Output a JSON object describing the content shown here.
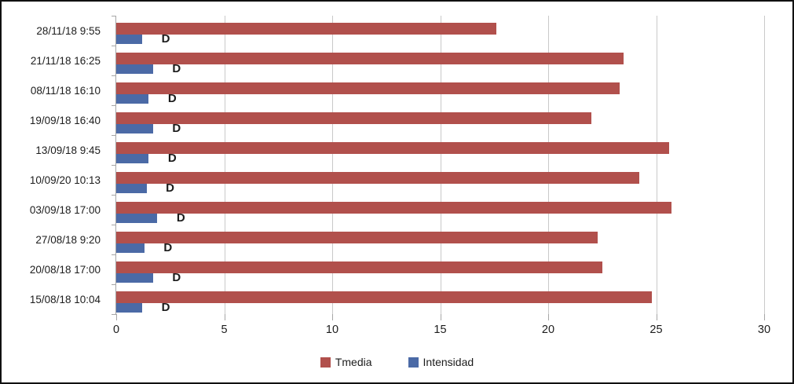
{
  "chart_data": {
    "type": "bar",
    "orientation": "horizontal",
    "title": "",
    "xlabel": "",
    "ylabel": "",
    "categories": [
      "28/11/18 9:55",
      "21/11/18 16:25",
      "08/11/18 16:10",
      "19/09/18 16:40",
      "13/09/18 9:45",
      "10/09/20 10:13",
      "03/09/18 17:00",
      "27/08/18 9:20",
      "20/08/18 17:00",
      "15/08/18 10:04"
    ],
    "series": [
      {
        "name": "Tmedia",
        "color": "#B1504C",
        "values": [
          17.6,
          23.5,
          23.3,
          22.0,
          25.6,
          24.2,
          25.7,
          22.3,
          22.5,
          24.8
        ]
      },
      {
        "name": "Intensidad",
        "color": "#4B6AA6",
        "values": [
          1.2,
          1.7,
          1.5,
          1.7,
          1.5,
          1.4,
          1.9,
          1.3,
          1.7,
          1.2
        ]
      }
    ],
    "bar_labels": {
      "series": "Intensidad",
      "text": "D",
      "position": "outside-end"
    },
    "x_ticks": [
      0,
      5,
      10,
      15,
      20,
      25,
      30
    ],
    "xlim": [
      0,
      30
    ],
    "grid": "vertical",
    "legend_position": "bottom-center"
  },
  "style": {
    "gridline_color": "#C9C9C9",
    "axis_color": "#A6A6A6",
    "text_color": "#1C1C1C",
    "background_color": "#FFFFFF",
    "border_color": "#111111"
  }
}
